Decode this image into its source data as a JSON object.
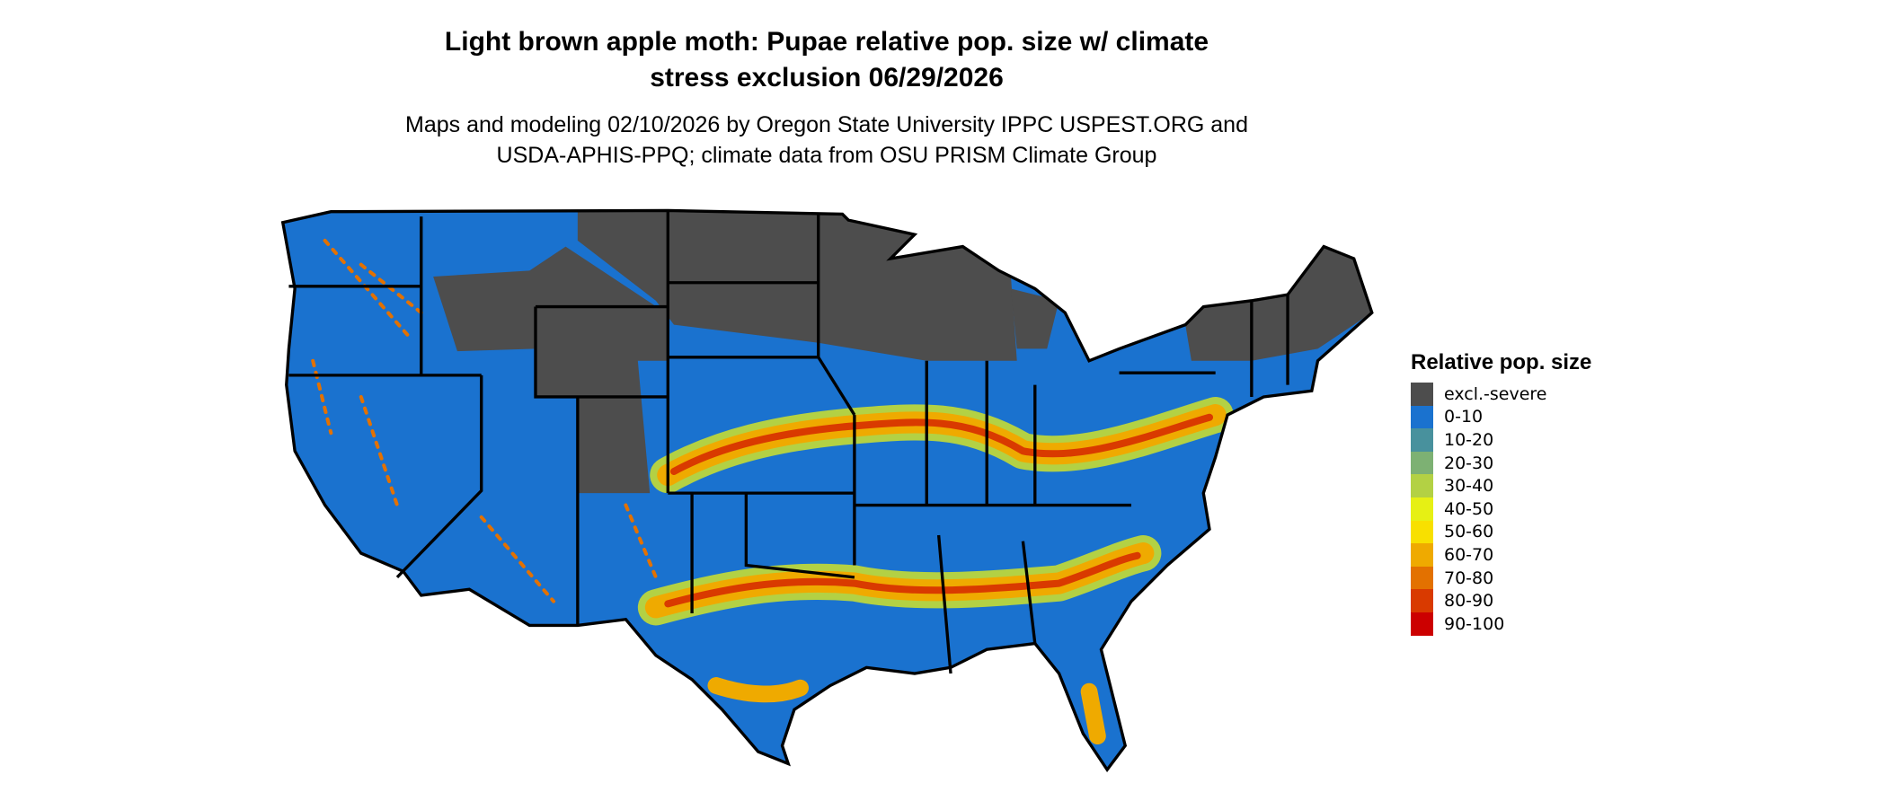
{
  "title_line1": "Light brown apple moth: Pupae relative pop. size w/ climate",
  "title_line2": "stress exclusion 06/29/2026",
  "subtitle_line1": "Maps and modeling 02/10/2026 by Oregon State University IPPC USPEST.ORG and",
  "subtitle_line2": "USDA-APHIS-PPQ; climate data from OSU PRISM Climate Group",
  "legend": {
    "title": "Relative pop. size",
    "items": [
      {
        "label": "excl.-severe",
        "color": "#4d4d4d"
      },
      {
        "label": "0-10",
        "color": "#1a72cf"
      },
      {
        "label": "10-20",
        "color": "#48919d"
      },
      {
        "label": "20-30",
        "color": "#7db173"
      },
      {
        "label": "30-40",
        "color": "#b3d144"
      },
      {
        "label": "40-50",
        "color": "#e6f014"
      },
      {
        "label": "50-60",
        "color": "#f8e000"
      },
      {
        "label": "60-70",
        "color": "#efaa00"
      },
      {
        "label": "70-80",
        "color": "#e37100"
      },
      {
        "label": "80-90",
        "color": "#d93a00"
      },
      {
        "label": "90-100",
        "color": "#cc0000"
      }
    ]
  }
}
